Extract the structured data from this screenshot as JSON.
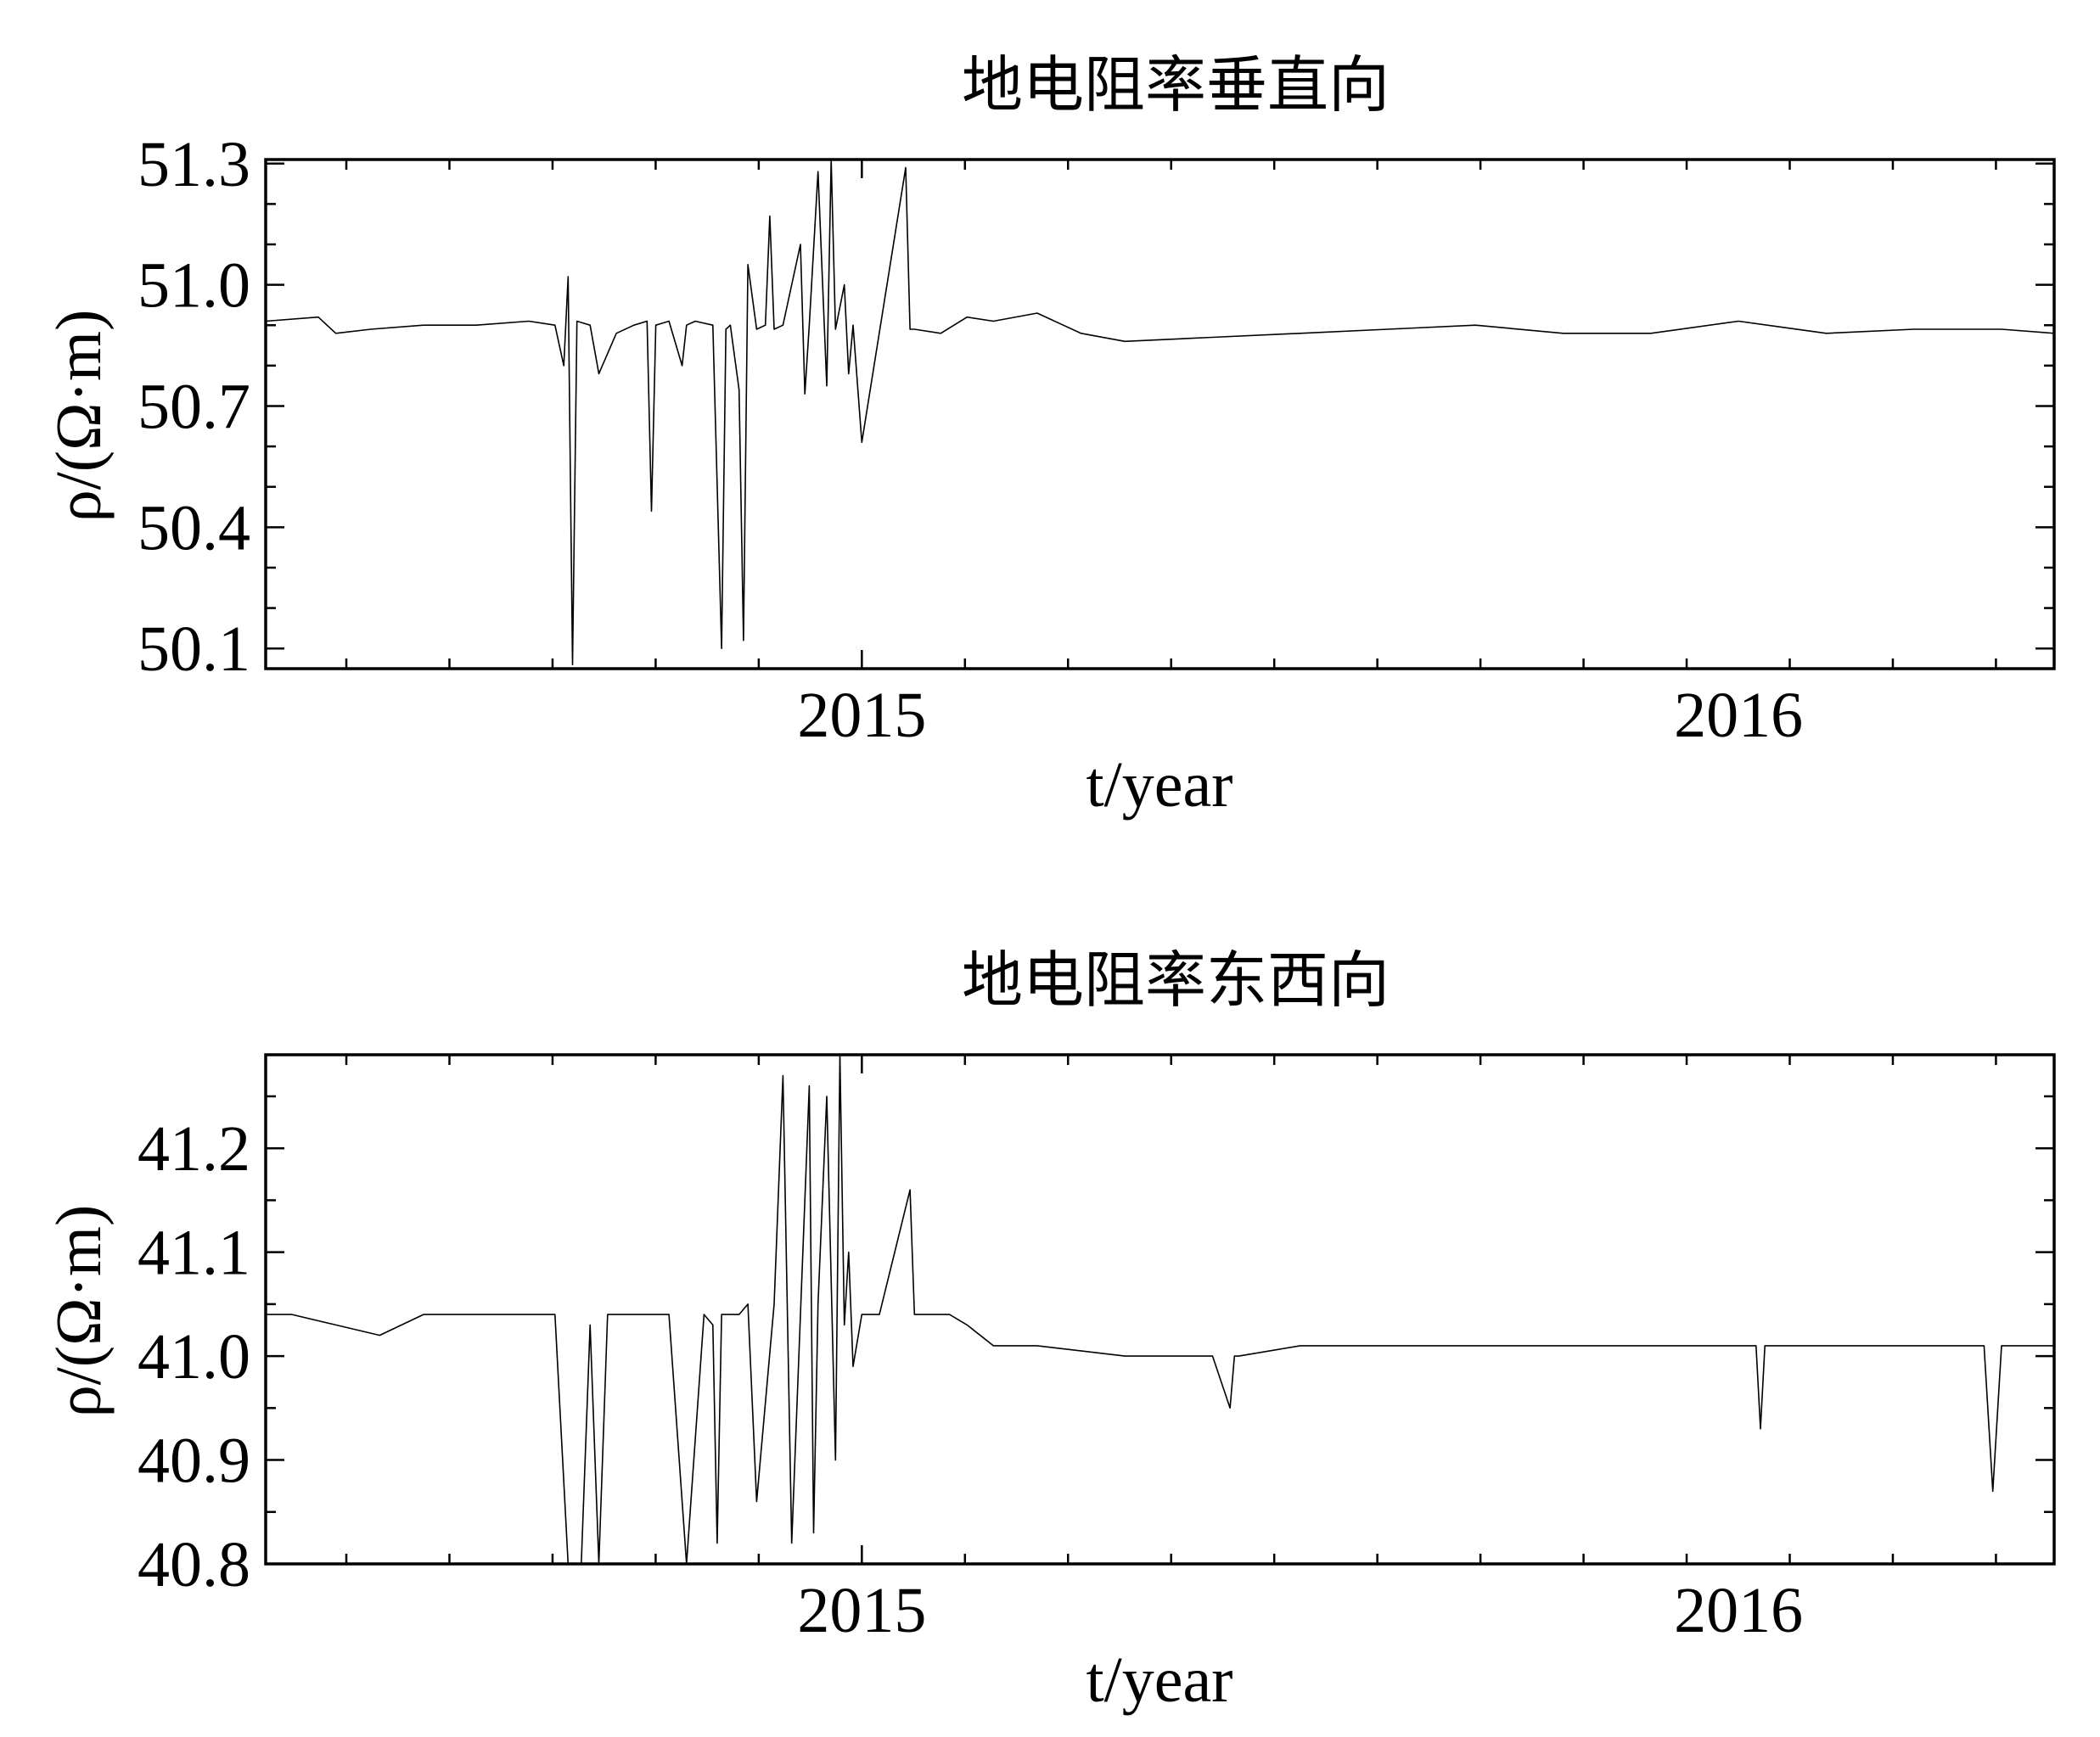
{
  "chart_data": [
    {
      "type": "line",
      "title": "地电阻率垂直向",
      "xlabel": "t/year",
      "ylabel": "ρ/(Ω·m)",
      "xlim": [
        2014.32,
        2016.36
      ],
      "ylim": [
        50.05,
        51.31
      ],
      "x_ticks": [
        2015,
        2016
      ],
      "x_tick_labels": [
        "2015",
        "2016"
      ],
      "x_minor_step": 0.1176,
      "y_ticks": [
        50.1,
        50.4,
        50.7,
        51.0,
        51.3
      ],
      "y_tick_labels": [
        "50.1",
        "50.4",
        "50.7",
        "51.0",
        "51.3"
      ],
      "y_minor_step": 0.1,
      "grid": false,
      "line_color": "#000000",
      "series": [
        {
          "x": [
            2014.32,
            2014.38,
            2014.4,
            2014.44,
            2014.5,
            2014.56,
            2014.62,
            2014.65,
            2014.66,
            2014.665,
            2014.67,
            2014.675,
            2014.69,
            2014.7,
            2014.72,
            2014.74,
            2014.755,
            2014.76,
            2014.765,
            2014.78,
            2014.795,
            2014.8,
            2014.81,
            2014.83,
            2014.84,
            2014.845,
            2014.85,
            2014.86,
            2014.865,
            2014.87,
            2014.88,
            2014.89,
            2014.895,
            2014.9,
            2014.91,
            2014.93,
            2014.935,
            2014.94,
            2014.95,
            2014.96,
            2014.965,
            2014.97,
            2014.98,
            2014.985,
            2014.99,
            2015.0,
            2015.05,
            2015.055,
            2015.06,
            2015.09,
            2015.12,
            2015.15,
            2015.2,
            2015.25,
            2015.3,
            2015.4,
            2015.5,
            2015.6,
            2015.7,
            2015.8,
            2015.9,
            2016.0,
            2016.1,
            2016.2,
            2016.3,
            2016.36
          ],
          "y": [
            50.91,
            50.92,
            50.88,
            50.89,
            50.9,
            50.9,
            50.91,
            50.9,
            50.8,
            51.02,
            50.06,
            50.91,
            50.9,
            50.78,
            50.88,
            50.9,
            50.91,
            50.44,
            50.9,
            50.91,
            50.8,
            50.9,
            50.91,
            50.9,
            50.1,
            50.89,
            50.9,
            50.74,
            50.12,
            51.05,
            50.89,
            50.9,
            51.17,
            50.89,
            50.9,
            51.1,
            50.73,
            50.9,
            51.28,
            50.75,
            51.31,
            50.89,
            51.0,
            50.78,
            50.9,
            50.61,
            51.29,
            50.89,
            50.89,
            50.88,
            50.92,
            50.91,
            50.93,
            50.88,
            50.86,
            50.87,
            50.88,
            50.89,
            50.9,
            50.88,
            50.88,
            50.91,
            50.88,
            50.89,
            50.89,
            50.88
          ]
        }
      ]
    },
    {
      "type": "line",
      "title": "地电阻率东西向",
      "xlabel": "t/year",
      "ylabel": "ρ/(Ω·m)",
      "xlim": [
        2014.32,
        2016.36
      ],
      "ylim": [
        40.8,
        41.29
      ],
      "x_ticks": [
        2015,
        2016
      ],
      "x_tick_labels": [
        "2015",
        "2016"
      ],
      "x_minor_step": 0.1176,
      "y_ticks": [
        40.8,
        40.9,
        41.0,
        41.1,
        41.2
      ],
      "y_tick_labels": [
        "40.8",
        "40.9",
        "41.0",
        "41.1",
        "41.2"
      ],
      "y_minor_step": 0.05,
      "grid": false,
      "line_color": "#000000",
      "series": [
        {
          "x": [
            2014.32,
            2014.35,
            2014.4,
            2014.45,
            2014.5,
            2014.55,
            2014.6,
            2014.65,
            2014.665,
            2014.67,
            2014.68,
            2014.69,
            2014.7,
            2014.71,
            2014.72,
            2014.74,
            2014.78,
            2014.8,
            2014.82,
            2014.83,
            2014.835,
            2014.84,
            2014.85,
            2014.86,
            2014.87,
            2014.88,
            2014.9,
            2014.91,
            2014.92,
            2014.93,
            2014.94,
            2014.945,
            2014.95,
            2014.96,
            2014.97,
            2014.975,
            2014.98,
            2014.985,
            2014.99,
            2015.0,
            2015.02,
            2015.055,
            2015.06,
            2015.1,
            2015.12,
            2015.15,
            2015.2,
            2015.3,
            2015.4,
            2015.42,
            2015.425,
            2015.43,
            2015.5,
            2015.6,
            2015.7,
            2015.8,
            2015.9,
            2016.0,
            2016.02,
            2016.025,
            2016.03,
            2016.1,
            2016.2,
            2016.28,
            2016.29,
            2016.3,
            2016.36
          ],
          "y": [
            41.04,
            41.04,
            41.03,
            41.02,
            41.04,
            41.04,
            41.04,
            41.04,
            40.8,
            40.8,
            40.8,
            41.03,
            40.8,
            41.04,
            41.04,
            41.04,
            41.04,
            40.8,
            41.04,
            41.03,
            40.82,
            41.04,
            41.04,
            41.04,
            41.05,
            40.86,
            41.05,
            41.27,
            40.82,
            41.04,
            41.26,
            40.83,
            41.05,
            41.25,
            40.9,
            41.29,
            41.03,
            41.1,
            40.99,
            41.04,
            41.04,
            41.16,
            41.04,
            41.04,
            41.03,
            41.01,
            41.01,
            41.0,
            41.0,
            40.95,
            41.0,
            41.0,
            41.01,
            41.01,
            41.01,
            41.01,
            41.01,
            41.01,
            41.01,
            40.93,
            41.01,
            41.01,
            41.01,
            41.01,
            40.87,
            41.01,
            41.01
          ]
        }
      ]
    }
  ]
}
